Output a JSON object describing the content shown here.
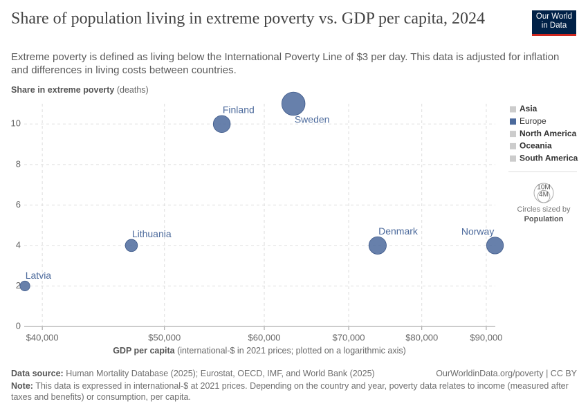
{
  "header": {
    "title": "Share of population living in extreme poverty vs. GDP per capita, 2024",
    "subtitle": "Extreme poverty is defined as living below the International Poverty Line of $3 per day. This data is adjusted for inflation and differences in living costs between countries.",
    "logo": [
      "Our World",
      "in Data"
    ]
  },
  "chart_data": {
    "type": "scatter",
    "log_x": true,
    "grid": true,
    "y_label": "Share in extreme poverty",
    "y_label_unit": "(deaths)",
    "x_label": "GDP per capita",
    "x_label_unit": "(international-$ in 2021 prices; plotted on a logarithmic axis)",
    "labels": [
      "Latvia",
      "Lithuania",
      "Finland",
      "Sweden",
      "Denmark",
      "Norway"
    ],
    "x": [
      38750,
      47070,
      55520,
      63280,
      73800,
      91450
    ],
    "values": [
      2,
      4,
      10,
      11,
      4,
      4
    ],
    "sizes": [
      1900000,
      2900000,
      5600000,
      10500000,
      5900000,
      5500000
    ],
    "color": "#4c6a9c",
    "xlim": [
      38700,
      91500
    ],
    "ylim": [
      0,
      11
    ],
    "xticks": [
      {
        "value": 40000,
        "label": "$40,000"
      },
      {
        "value": 50000,
        "label": "$50,000"
      },
      {
        "value": 60000,
        "label": "$60,000"
      },
      {
        "value": 70000,
        "label": "$70,000"
      },
      {
        "value": 80000,
        "label": "$80,000"
      },
      {
        "value": 90000,
        "label": "$90,000"
      }
    ],
    "yticks": [
      0,
      2,
      4,
      6,
      8,
      10
    ],
    "legend": [
      {
        "name": "Asia",
        "color": "#cccccc"
      },
      {
        "name": "Europe",
        "color": "#4c6a9c"
      },
      {
        "name": "North America",
        "color": "#cccccc"
      },
      {
        "name": "Oceania",
        "color": "#cccccc"
      },
      {
        "name": "South America",
        "color": "#cccccc"
      }
    ],
    "size_legend": {
      "values": [
        {
          "value": 10000000,
          "label": "10M"
        },
        {
          "value": 4000000,
          "label": "4M"
        }
      ],
      "caption": "Circles sized by",
      "variable": "Population"
    }
  },
  "footer": {
    "source_label": "Data source:",
    "source": "Human Mortality Database (2025); Eurostat, OECD, IMF, and World Bank (2025)",
    "link": "OurWorldinData.org/poverty | CC BY",
    "note_label": "Note:",
    "note": "This data is expressed in international-$ at 2021 prices. Depending on the country and year, poverty data relates to income (measured after taxes and benefits) or consumption, per capita."
  }
}
